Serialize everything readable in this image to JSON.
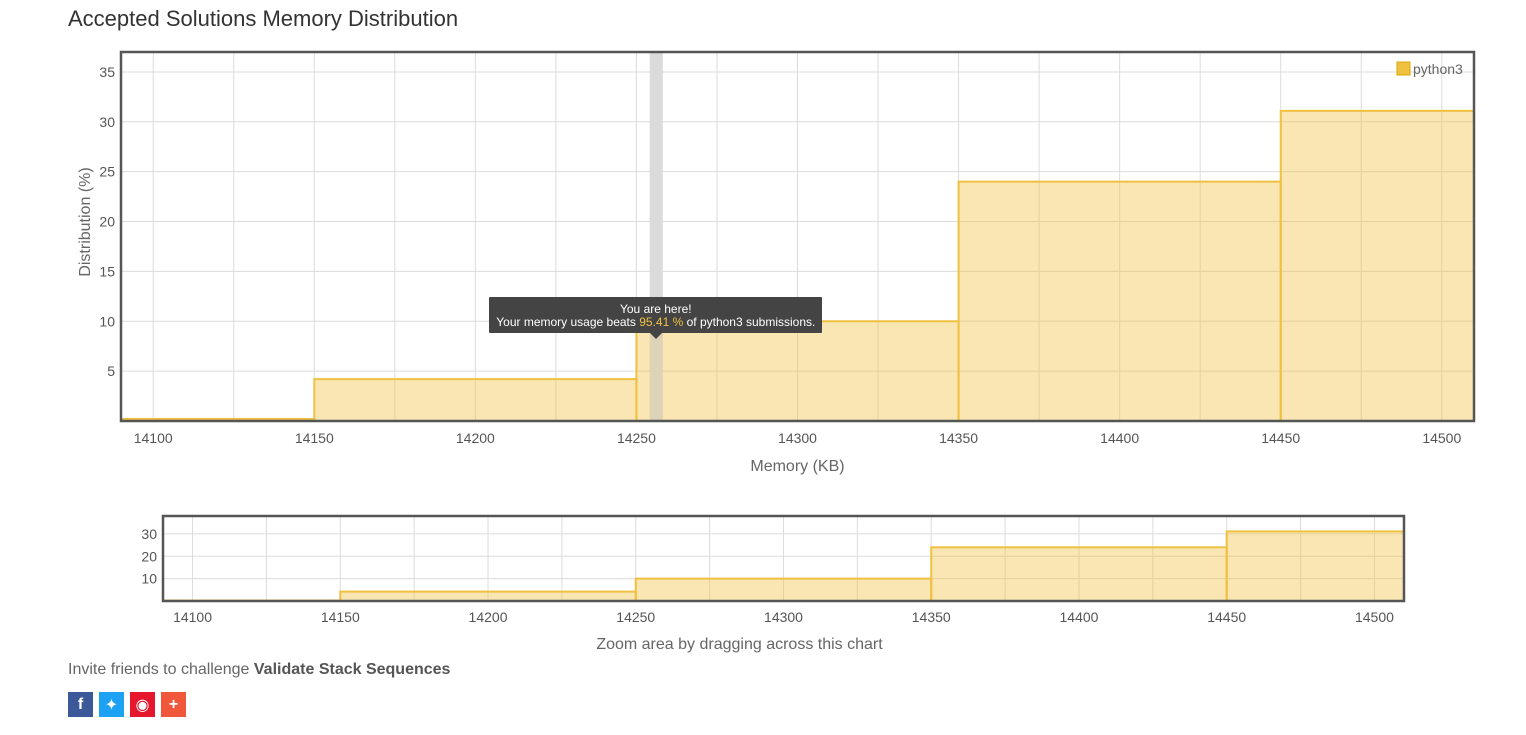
{
  "page": {
    "title": "Accepted Solutions Memory Distribution",
    "invite_prefix": "Invite friends to challenge ",
    "invite_problem": "Validate Stack Sequences",
    "nav_caption": "Zoom area by dragging across this chart"
  },
  "tooltip": {
    "line1": "You are here!",
    "line2_prefix": "Your memory usage beats ",
    "line2_value": "95.41 %",
    "line2_suffix": " of python3 submissions.",
    "marker_x": 14256
  },
  "share": [
    {
      "name": "facebook",
      "icon": "f",
      "color": "#3b5998"
    },
    {
      "name": "twitter",
      "icon": "t",
      "color": "#1da1f2"
    },
    {
      "name": "weibo",
      "icon": "w",
      "color": "#e6162d"
    },
    {
      "name": "more",
      "icon": "+",
      "color": "#f0583c"
    }
  ],
  "chart_data": [
    {
      "type": "bar",
      "role": "main",
      "xlabel": "Memory (KB)",
      "ylabel": "Distribution (%)",
      "xlim": [
        14090,
        14510
      ],
      "ylim": [
        0,
        37
      ],
      "xticks": [
        14100,
        14150,
        14200,
        14250,
        14300,
        14350,
        14400,
        14450,
        14500
      ],
      "yticks": [
        5,
        10,
        15,
        20,
        25,
        30,
        35
      ],
      "legend": "top-right",
      "grid": true,
      "series": [
        {
          "name": "python3",
          "color": "#f0c040",
          "bins": [
            {
              "x0": 14090,
              "x1": 14150,
              "value": 0.2
            },
            {
              "x0": 14150,
              "x1": 14250,
              "value": 4.2
            },
            {
              "x0": 14250,
              "x1": 14350,
              "value": 10.0
            },
            {
              "x0": 14350,
              "x1": 14450,
              "value": 24.0
            },
            {
              "x0": 14450,
              "x1": 14510,
              "value": 31.1
            }
          ]
        }
      ]
    },
    {
      "type": "bar",
      "role": "navigator",
      "xlim": [
        14090,
        14510
      ],
      "ylim": [
        0,
        38
      ],
      "xticks": [
        14100,
        14150,
        14200,
        14250,
        14300,
        14350,
        14400,
        14450,
        14500
      ],
      "yticks": [
        10,
        20,
        30
      ],
      "grid": true,
      "series": [
        {
          "name": "python3",
          "color": "#f0c040",
          "bins": [
            {
              "x0": 14090,
              "x1": 14150,
              "value": 0.2
            },
            {
              "x0": 14150,
              "x1": 14250,
              "value": 4.2
            },
            {
              "x0": 14250,
              "x1": 14350,
              "value": 10.0
            },
            {
              "x0": 14350,
              "x1": 14450,
              "value": 24.0
            },
            {
              "x0": 14450,
              "x1": 14510,
              "value": 31.1
            }
          ]
        }
      ]
    }
  ]
}
